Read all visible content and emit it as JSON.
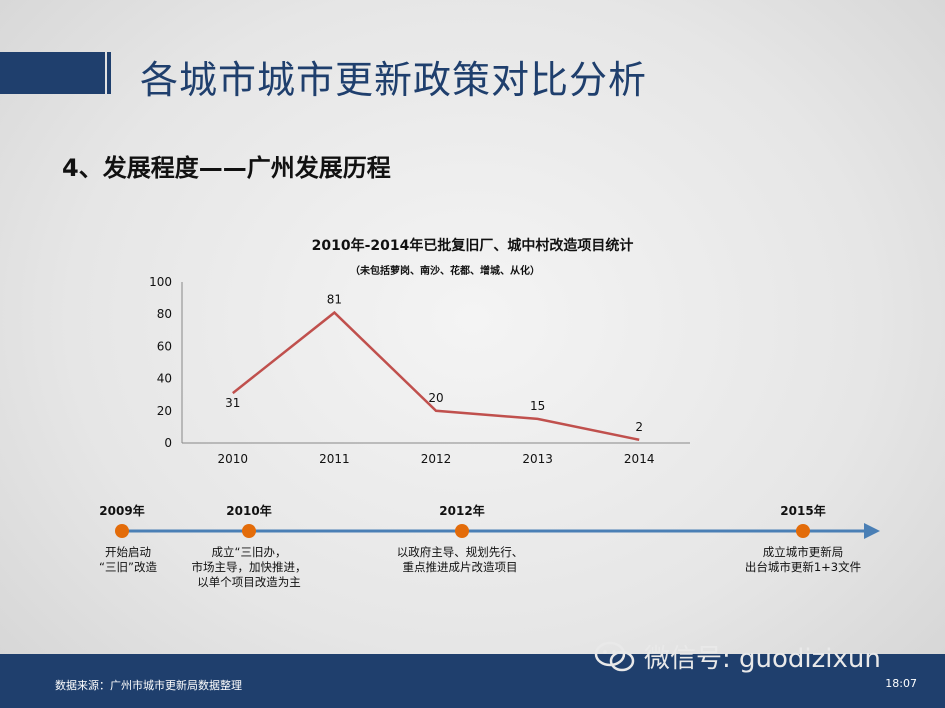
{
  "header": {
    "title": "各城市城市更新政策对比分析",
    "subtitle": "4、发展程度——广州发展历程"
  },
  "chart_data": {
    "type": "line",
    "title": "2010年-2014年已批复旧厂、城中村改造项目统计",
    "subtitle": "（未包括萝岗、南沙、花都、增城、从化）",
    "categories": [
      "2010",
      "2011",
      "2012",
      "2013",
      "2014"
    ],
    "values": [
      31,
      81,
      20,
      15,
      2
    ],
    "ylim": [
      0,
      100
    ],
    "yticks": [
      "0",
      "20",
      "40",
      "60",
      "80",
      "100"
    ],
    "colors": {
      "line": "#c0504d",
      "axis": "#888888"
    }
  },
  "timeline": {
    "events": [
      {
        "year": "2009年",
        "desc": "开始启动\n“三旧”改造"
      },
      {
        "year": "2010年",
        "desc": "成立“三旧办，\n市场主导，加快推进，\n以单个项目改造为主"
      },
      {
        "year": "2012年",
        "desc": "以政府主导、规划先行、\n重点推进成片改造项目"
      },
      {
        "year": "2015年",
        "desc": "成立城市更新局\n出台城市更新1+3文件"
      }
    ],
    "colors": {
      "line": "#4a7fb5",
      "dot": "#e36c0a"
    }
  },
  "footer": {
    "source": "数据来源：广州市城市更新局数据整理",
    "time": "18:07"
  },
  "watermark": {
    "text": "微信号: guodizixun",
    "icon": "wechat-icon"
  },
  "colors": {
    "brand": "#1f3f6d"
  }
}
